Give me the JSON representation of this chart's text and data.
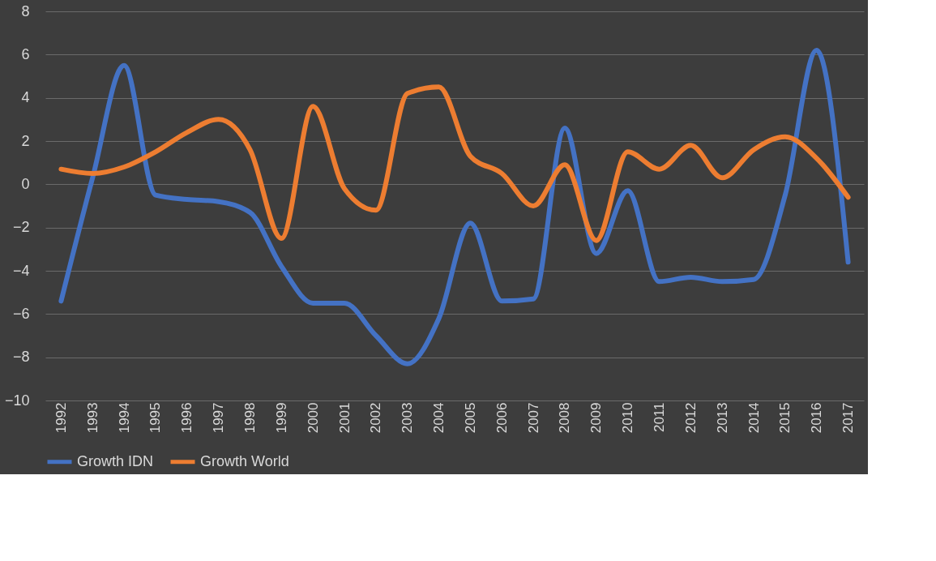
{
  "chart_data": {
    "type": "line",
    "categories": [
      "1992",
      "1993",
      "1994",
      "1995",
      "1996",
      "1997",
      "1998",
      "1999",
      "2000",
      "2001",
      "2002",
      "2003",
      "2004",
      "2005",
      "2006",
      "2007",
      "2008",
      "2009",
      "2010",
      "2011",
      "2012",
      "2013",
      "2014",
      "2015",
      "2016",
      "2017"
    ],
    "series": [
      {
        "name": "Growth IDN",
        "color": "#4472c4",
        "values": [
          -5.4,
          0.3,
          5.5,
          -0.5,
          -0.7,
          -0.8,
          -1.3,
          -3.8,
          -5.5,
          -5.5,
          -7.0,
          -8.3,
          -6.2,
          -1.8,
          -5.4,
          -5.3,
          2.6,
          -3.2,
          -0.3,
          -4.5,
          -4.3,
          -4.5,
          -4.4,
          -0.5,
          6.2,
          -3.6
        ]
      },
      {
        "name": "Growth World",
        "color": "#ed7d31",
        "values": [
          0.7,
          0.5,
          0.8,
          1.5,
          2.4,
          3.0,
          1.6,
          -2.5,
          3.6,
          -0.2,
          -1.2,
          4.2,
          4.5,
          1.3,
          0.5,
          -1.0,
          0.9,
          -2.6,
          1.5,
          0.7,
          1.8,
          0.3,
          1.6,
          2.2,
          1.2,
          -0.6
        ]
      }
    ],
    "ylim": [
      -10,
      8
    ],
    "yticks": [
      -10,
      -8,
      -6,
      -4,
      -2,
      0,
      2,
      4,
      6,
      8
    ],
    "grid": "y",
    "legend": "bottom",
    "marker": "none",
    "line_style": "solid"
  }
}
